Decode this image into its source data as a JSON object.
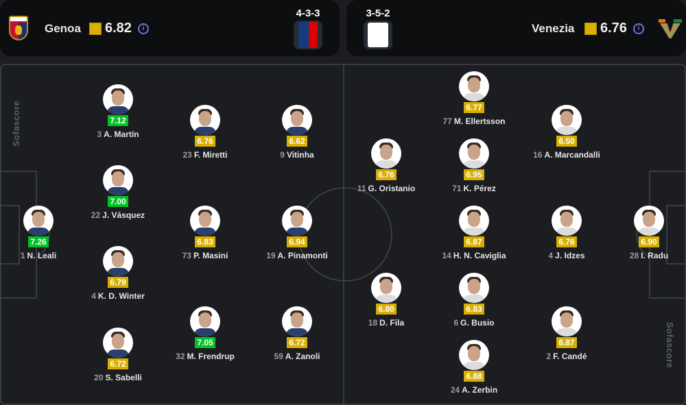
{
  "colors": {
    "green": "#00c424",
    "yellow": "#d9af00",
    "background": "#1b1d20",
    "card": "#0c0e10"
  },
  "home": {
    "name": "Genoa",
    "rating": "6.82",
    "formation": "4-3-3",
    "info_icon": "info-icon",
    "kit": "blue-red-shirt"
  },
  "away": {
    "name": "Venezia",
    "rating": "6.76",
    "formation": "3-5-2",
    "info_icon": "info-icon",
    "kit": "white-shirt"
  },
  "watermark": "Sofascore",
  "players": [
    {
      "num": "1",
      "name": "N. Leali",
      "rating": "7.26",
      "team": "home"
    },
    {
      "num": "3",
      "name": "A. Martín",
      "rating": "7.12",
      "team": "home"
    },
    {
      "num": "22",
      "name": "J. Vásquez",
      "rating": "7.00",
      "team": "home"
    },
    {
      "num": "4",
      "name": "K. D. Winter",
      "rating": "6.79",
      "team": "home"
    },
    {
      "num": "20",
      "name": "S. Sabelli",
      "rating": "6.72",
      "team": "home"
    },
    {
      "num": "23",
      "name": "F. Miretti",
      "rating": "6.76",
      "team": "home"
    },
    {
      "num": "73",
      "name": "P. Masini",
      "rating": "6.83",
      "team": "home"
    },
    {
      "num": "32",
      "name": "M. Frendrup",
      "rating": "7.05",
      "team": "home"
    },
    {
      "num": "9",
      "name": "Vitinha",
      "rating": "6.62",
      "team": "home"
    },
    {
      "num": "19",
      "name": "A. Pinamonti",
      "rating": "6.94",
      "team": "home"
    },
    {
      "num": "59",
      "name": "A. Zanoli",
      "rating": "6.72",
      "team": "home"
    },
    {
      "num": "77",
      "name": "M. Ellertsson",
      "rating": "6.77",
      "team": "away"
    },
    {
      "num": "11",
      "name": "G. Oristanio",
      "rating": "6.76",
      "team": "away"
    },
    {
      "num": "71",
      "name": "K. Pérez",
      "rating": "6.95",
      "team": "away"
    },
    {
      "num": "16",
      "name": "A. Marcandalli",
      "rating": "6.50",
      "team": "away"
    },
    {
      "num": "14",
      "name": "H. N. Caviglia",
      "rating": "6.87",
      "team": "away"
    },
    {
      "num": "4",
      "name": "J. Idzes",
      "rating": "6.76",
      "team": "away"
    },
    {
      "num": "28",
      "name": "I. Radu",
      "rating": "6.90",
      "team": "away"
    },
    {
      "num": "18",
      "name": "D. Fila",
      "rating": "6.80",
      "team": "away"
    },
    {
      "num": "6",
      "name": "G. Busio",
      "rating": "6.83",
      "team": "away"
    },
    {
      "num": "2",
      "name": "F. Candé",
      "rating": "6.87",
      "team": "away"
    },
    {
      "num": "24",
      "name": "A. Zerbin",
      "rating": "6.88",
      "team": "away"
    }
  ]
}
